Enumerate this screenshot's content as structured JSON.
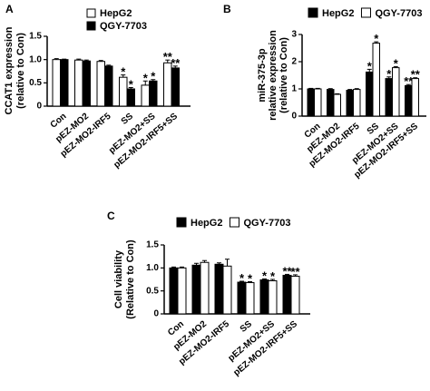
{
  "colors": {
    "filled": "#000000",
    "open": "#ffffff",
    "stroke": "#000000"
  },
  "chart_data": [
    {
      "panel": "A",
      "type": "bar",
      "ylabel_lines": [
        "CCAT1  expression",
        "(relative to Con)"
      ],
      "ylim": [
        0,
        1.5
      ],
      "yticks": [
        0,
        0.5,
        1.0,
        1.5
      ],
      "ytick_labels": [
        "0",
        "0.5",
        "1.0",
        "1.5"
      ],
      "categories": [
        "Con",
        "pEZ-MO2",
        "pEZ-MO2-IRF5",
        "SS",
        "pEZ-MO2+SS",
        "pEZ-MO2-IRF5+SS"
      ],
      "legend_position": "top-right",
      "series": [
        {
          "name": "HepG2",
          "style": "open",
          "values": [
            1.0,
            0.99,
            0.96,
            0.62,
            0.45,
            0.93
          ],
          "errors": [
            0.02,
            0.02,
            0.02,
            0.05,
            0.09,
            0.06
          ],
          "annotations": [
            "",
            "",
            "",
            "*",
            "*",
            "**"
          ]
        },
        {
          "name": "QGY-7703",
          "style": "filled",
          "values": [
            1.0,
            0.97,
            0.86,
            0.37,
            0.54,
            0.82
          ],
          "errors": [
            0.01,
            0.02,
            0.02,
            0.03,
            0.03,
            0.04
          ],
          "annotations": [
            "",
            "",
            "",
            "*",
            "*",
            "**"
          ]
        }
      ]
    },
    {
      "panel": "B",
      "type": "bar",
      "ylabel_lines": [
        "miR-375-3p",
        "relative expression",
        "(relative to Con)"
      ],
      "ylim": [
        0,
        3
      ],
      "yticks": [
        0,
        1,
        2,
        3
      ],
      "ytick_labels": [
        "0",
        "1",
        "2",
        "3"
      ],
      "categories": [
        "Con",
        "pEZ-MO2",
        "pEZ-MO2-IRF5",
        "SS",
        "pEZ-MO2+SS",
        "pEZ-MO2-IRF5+SS"
      ],
      "legend_position": "top",
      "series": [
        {
          "name": "HepG2",
          "style": "filled",
          "values": [
            1.0,
            0.98,
            0.95,
            1.62,
            1.38,
            1.12
          ],
          "errors": [
            0.02,
            0.03,
            0.03,
            0.1,
            0.06,
            0.04
          ],
          "annotations": [
            "",
            "",
            "",
            "*",
            "*",
            "**"
          ]
        },
        {
          "name": "QGY-7703",
          "style": "open",
          "values": [
            1.0,
            0.8,
            0.98,
            2.68,
            1.78,
            1.38
          ],
          "errors": [
            0.02,
            0.02,
            0.03,
            0.05,
            0.04,
            0.03
          ],
          "annotations": [
            "",
            "",
            "",
            "*",
            "*",
            "**"
          ]
        }
      ]
    },
    {
      "panel": "C",
      "type": "bar",
      "ylabel_lines": [
        "Cell viability",
        "(Relative to Con)"
      ],
      "ylim": [
        0,
        1.5
      ],
      "yticks": [
        0,
        0.5,
        1.0,
        1.5
      ],
      "ytick_labels": [
        "0",
        "0.5",
        "1.0",
        "1.5"
      ],
      "categories": [
        "Con",
        "pEZ-MO2",
        "pEZ-MO2-IRF5",
        "SS",
        "pEZ-MO2+SS",
        "pEZ-MO2-IRF5+SS"
      ],
      "legend_position": "top",
      "series": [
        {
          "name": "HepG2",
          "style": "filled",
          "values": [
            1.0,
            1.06,
            1.08,
            0.69,
            0.74,
            0.84
          ],
          "errors": [
            0.02,
            0.04,
            0.03,
            0.02,
            0.02,
            0.02
          ],
          "annotations": [
            "",
            "",
            "",
            "*",
            "*",
            "**"
          ]
        },
        {
          "name": "QGY-7703",
          "style": "open",
          "values": [
            1.0,
            1.12,
            1.04,
            0.68,
            0.72,
            0.82
          ],
          "errors": [
            0.02,
            0.04,
            0.15,
            0.02,
            0.03,
            0.03
          ],
          "annotations": [
            "",
            "",
            "",
            "*",
            "*",
            "**"
          ]
        }
      ]
    }
  ]
}
